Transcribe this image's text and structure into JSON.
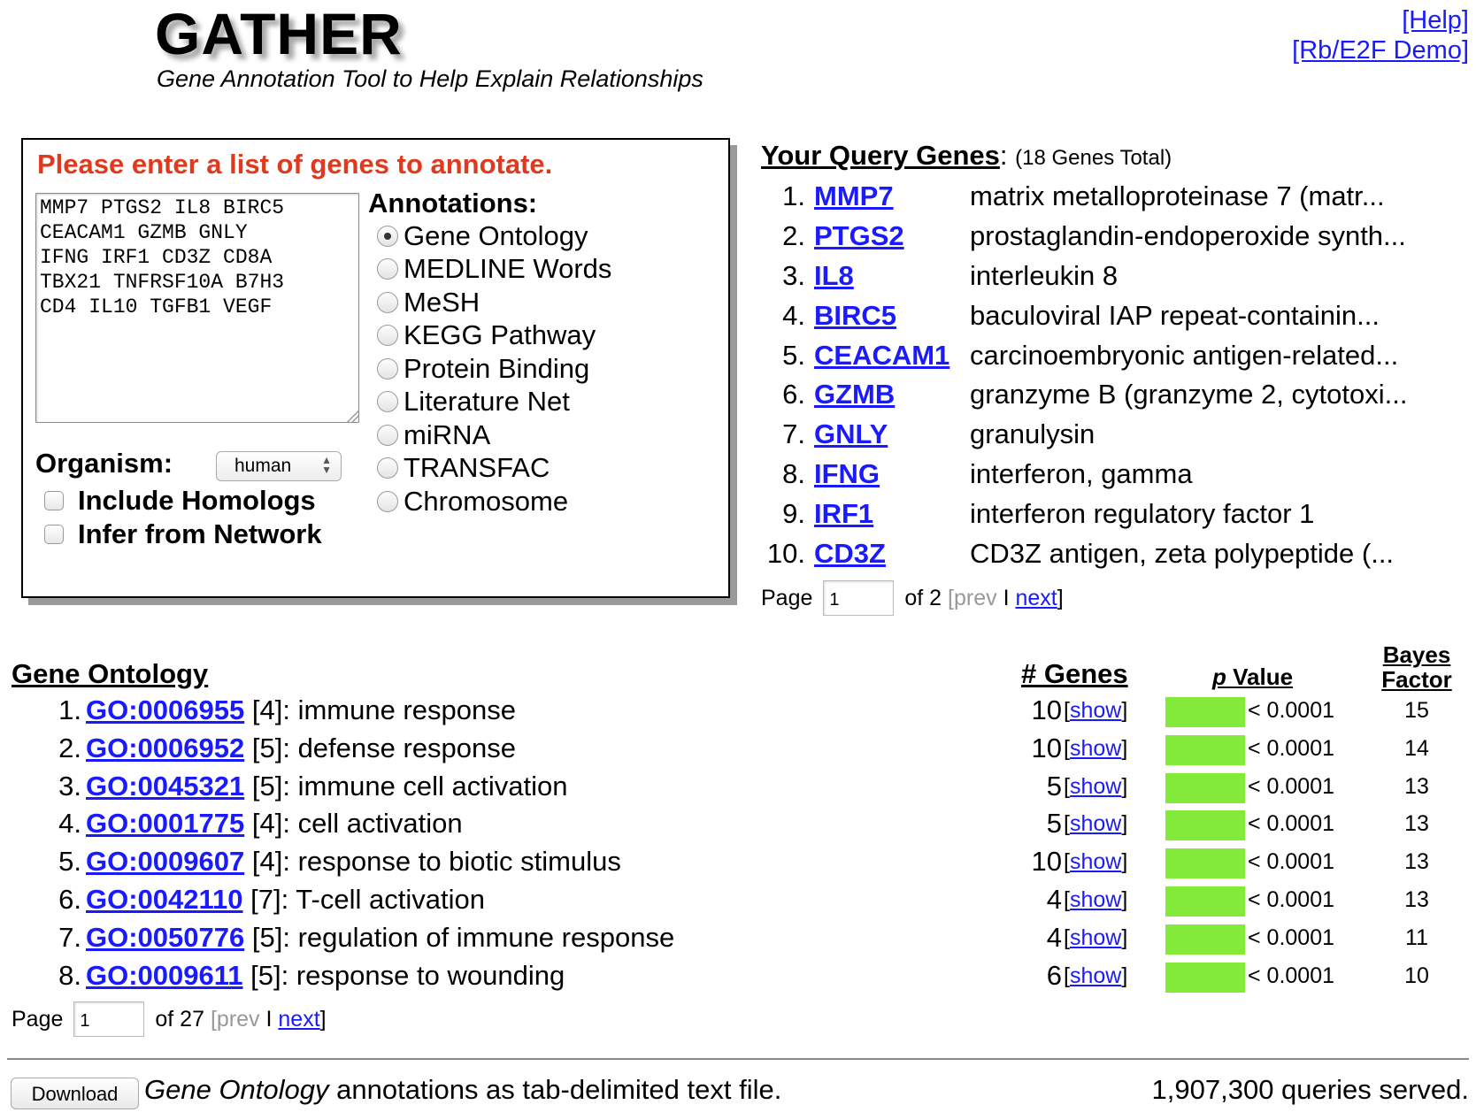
{
  "header": {
    "title": "GATHER",
    "subtitle": "Gene Annotation Tool to Help Explain Relationships",
    "links": [
      "[Help]",
      "[Rb/E2F Demo]"
    ]
  },
  "input_panel": {
    "heading": "Please enter a list of genes to annotate.",
    "genes_text": "MMP7 PTGS2 IL8 BIRC5\nCEACAM1 GZMB GNLY\nIFNG IRF1 CD3Z CD8A\nTBX21 TNFRSF10A B7H3\nCD4 IL10 TGFB1 VEGF",
    "annotations_label": "Annotations:",
    "annotations": [
      {
        "label": "Gene Ontology",
        "selected": true
      },
      {
        "label": "MEDLINE Words",
        "selected": false
      },
      {
        "label": "MeSH",
        "selected": false
      },
      {
        "label": "KEGG Pathway",
        "selected": false
      },
      {
        "label": "Protein Binding",
        "selected": false
      },
      {
        "label": "Literature Net",
        "selected": false
      },
      {
        "label": "miRNA",
        "selected": false
      },
      {
        "label": "TRANSFAC",
        "selected": false
      },
      {
        "label": "Chromosome",
        "selected": false
      }
    ],
    "organism_label": "Organism:",
    "organism_value": "human",
    "include_homologs": "Include Homologs",
    "infer_from_network": "Infer from Network"
  },
  "query_genes": {
    "heading": "Your Query Genes",
    "colon": ":",
    "total": "(18 Genes Total)",
    "genes": [
      {
        "num": "1.",
        "symbol": "MMP7",
        "desc": "matrix metalloproteinase 7 (matr..."
      },
      {
        "num": "2.",
        "symbol": "PTGS2",
        "desc": "prostaglandin-endoperoxide synth..."
      },
      {
        "num": "3.",
        "symbol": "IL8",
        "desc": "interleukin 8"
      },
      {
        "num": "4.",
        "symbol": "BIRC5",
        "desc": "baculoviral IAP repeat-containin..."
      },
      {
        "num": "5.",
        "symbol": "CEACAM1",
        "desc": "carcinoembryonic antigen-related..."
      },
      {
        "num": "6.",
        "symbol": "GZMB",
        "desc": "granzyme B (granzyme 2, cytotoxi..."
      },
      {
        "num": "7.",
        "symbol": "GNLY",
        "desc": "granulysin"
      },
      {
        "num": "8.",
        "symbol": "IFNG",
        "desc": "interferon, gamma"
      },
      {
        "num": "9.",
        "symbol": "IRF1",
        "desc": "interferon regulatory factor 1"
      },
      {
        "num": "10.",
        "symbol": "CD3Z",
        "desc": "CD3Z antigen, zeta polypeptide (..."
      }
    ],
    "pager": {
      "label": "Page",
      "value": "1",
      "of": "of 2",
      "open": "[",
      "prev": "prev",
      "sep": "I",
      "next": "next",
      "close": "]"
    }
  },
  "results": {
    "title": "Gene Ontology",
    "col_genes": "# Genes",
    "col_p_italic": "p",
    "col_p": "Value",
    "col_bayes": "Bayes Factor",
    "bar_color": "#84ea3a",
    "rows": [
      {
        "num": "1.",
        "id": "GO:0006955",
        "level": "[4]",
        "term": "immune response",
        "genes": "10",
        "show": "show",
        "p": "< 0.0001",
        "bayes": "15"
      },
      {
        "num": "2.",
        "id": "GO:0006952",
        "level": "[5]",
        "term": "defense response",
        "genes": "10",
        "show": "show",
        "p": "< 0.0001",
        "bayes": "14"
      },
      {
        "num": "3.",
        "id": "GO:0045321",
        "level": "[5]",
        "term": "immune cell activation",
        "genes": "5",
        "show": "show",
        "p": "< 0.0001",
        "bayes": "13"
      },
      {
        "num": "4.",
        "id": "GO:0001775",
        "level": "[4]",
        "term": "cell activation",
        "genes": "5",
        "show": "show",
        "p": "< 0.0001",
        "bayes": "13"
      },
      {
        "num": "5.",
        "id": "GO:0009607",
        "level": "[4]",
        "term": "response to biotic stimulus",
        "genes": "10",
        "show": "show",
        "p": "< 0.0001",
        "bayes": "13"
      },
      {
        "num": "6.",
        "id": "GO:0042110",
        "level": "[7]",
        "term": "T-cell activation",
        "genes": "4",
        "show": "show",
        "p": "< 0.0001",
        "bayes": "13"
      },
      {
        "num": "7.",
        "id": "GO:0050776",
        "level": "[5]",
        "term": "regulation of immune response",
        "genes": "4",
        "show": "show",
        "p": "< 0.0001",
        "bayes": "11"
      },
      {
        "num": "8.",
        "id": "GO:0009611",
        "level": "[5]",
        "term": "response to wounding",
        "genes": "6",
        "show": "show",
        "p": "< 0.0001",
        "bayes": "10"
      }
    ],
    "pager": {
      "label": "Page",
      "value": "1",
      "of": "of 27",
      "open": "[",
      "prev": "prev",
      "sep": "I",
      "next": "next",
      "close": "]"
    }
  },
  "footer": {
    "download_label": "Download",
    "download_text_italic": "Gene Ontology",
    "download_text": " annotations as tab-delimited text file.",
    "served": "1,907,300 queries served."
  }
}
